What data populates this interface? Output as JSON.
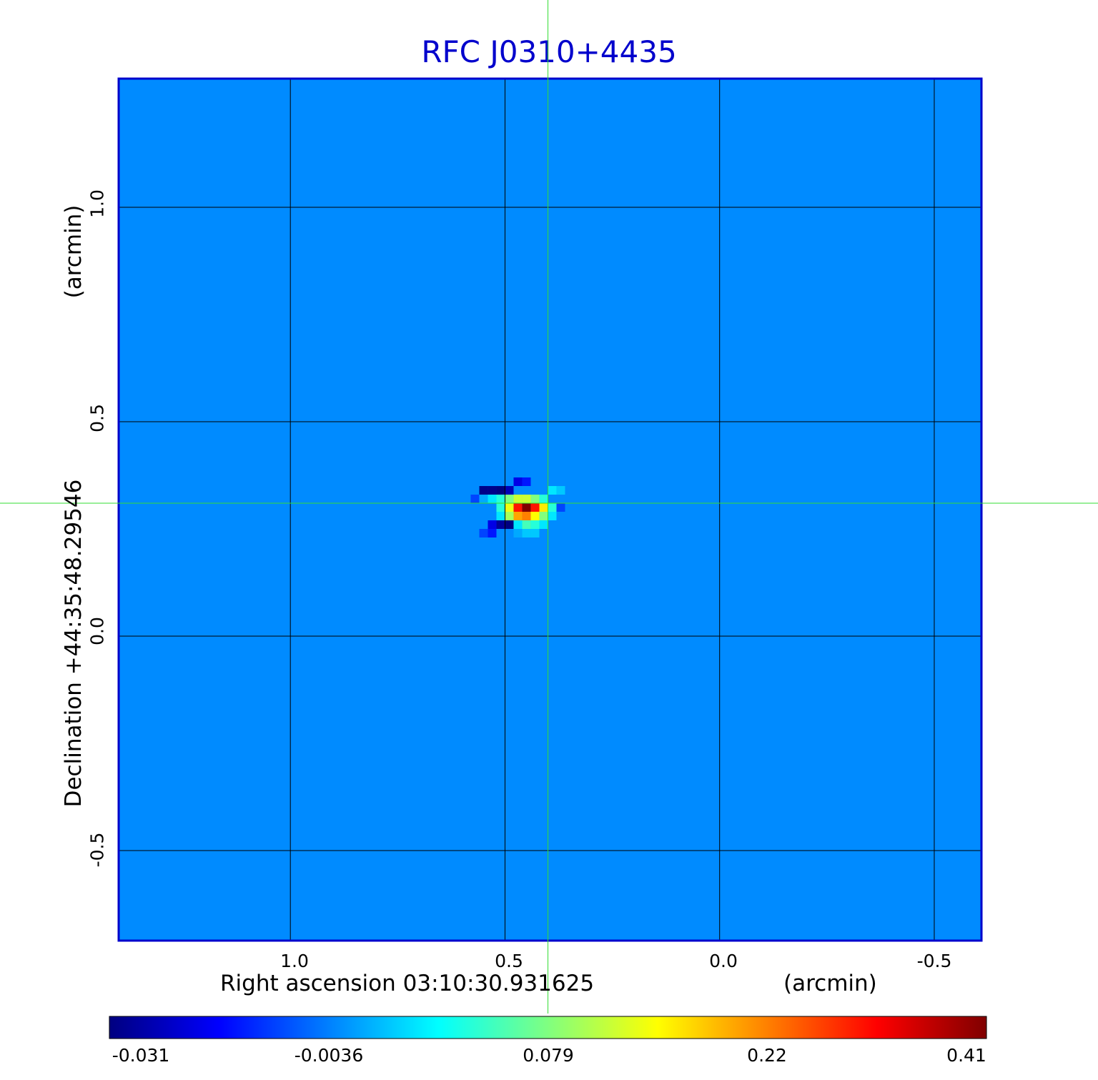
{
  "chart_data": {
    "type": "heatmap",
    "title": "RFC J0310+4435",
    "xlabel": "Right ascension  03:10:30.931625",
    "xunit": "(arcmin)",
    "ylabel": "Declination  +44:35:48.29546",
    "yunit": "(arcmin)",
    "x_ticks": [
      "1.0",
      "0.5",
      "0.0",
      "-0.5"
    ],
    "x_tick_values": [
      1.0,
      0.5,
      0.0,
      -0.5
    ],
    "y_ticks": [
      "1.0",
      "0.5",
      "0.0",
      "-0.5"
    ],
    "y_tick_values": [
      1.0,
      0.5,
      0.0,
      -0.5
    ],
    "xlim": [
      1.4,
      -0.61
    ],
    "ylim": [
      -0.71,
      1.3
    ],
    "grid": true,
    "colormap": "jet",
    "colorbar_ticks": [
      "-0.031",
      "-0.0036",
      "0.079",
      "0.22",
      "0.41"
    ],
    "colorbar_values": [
      -0.031,
      -0.0036,
      0.079,
      0.22,
      0.41
    ],
    "background_level": 0.0,
    "source_peak": {
      "x": 0.45,
      "y": 0.3,
      "value": 0.41
    },
    "crosshair": {
      "x": 0.4,
      "y": 0.31
    },
    "colors": {
      "title": "#0000cc",
      "frame": "#0000cc",
      "crosshair": "#33dd33",
      "grid": "#000000"
    }
  }
}
